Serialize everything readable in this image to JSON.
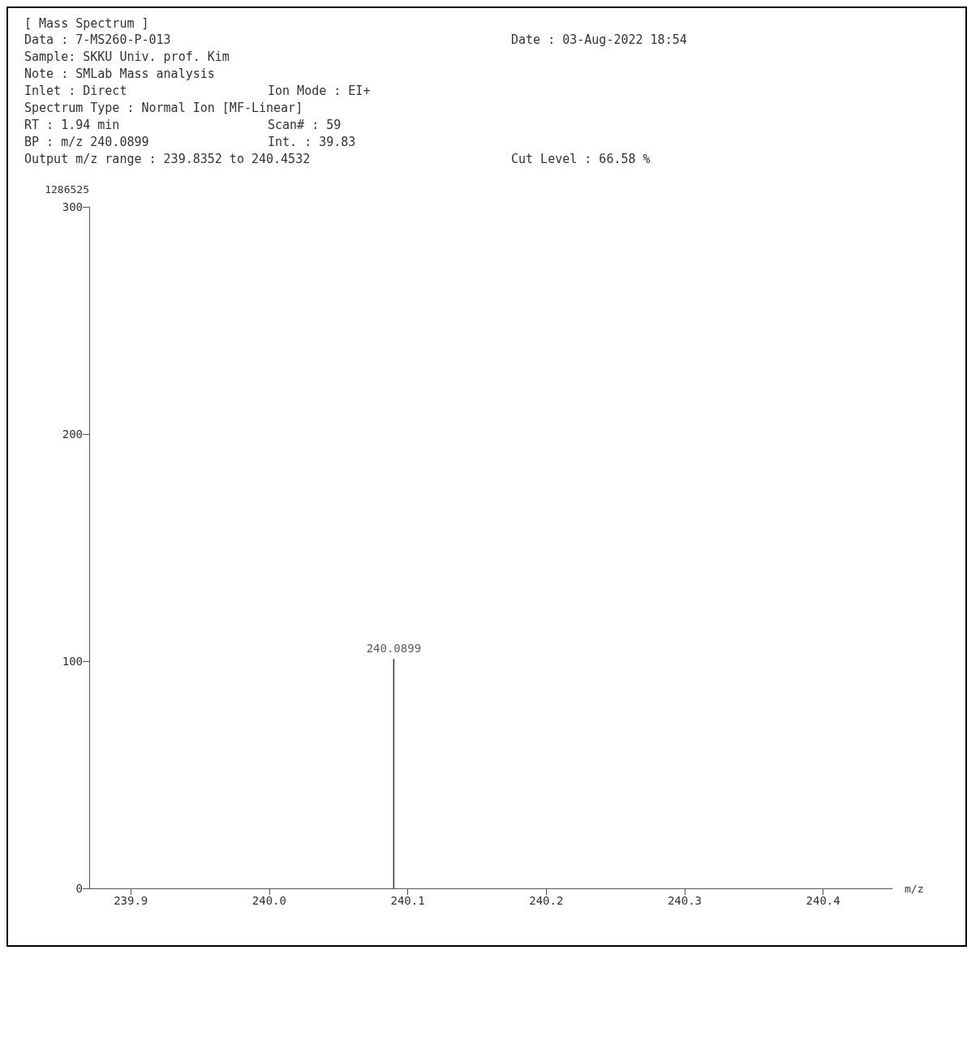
{
  "chart_data": {
    "type": "bar",
    "title": "[ Mass Spectrum ]",
    "annotations": [
      "Data : 7-MS260-P-013",
      "Date : 03-Aug-2022 18:54",
      "Sample: SKKU Univ. prof. Kim",
      "Note : SMLab Mass analysis",
      "Inlet : Direct",
      "Ion Mode : EI+",
      "Spectrum Type : Normal Ion [MF-Linear]",
      "RT : 1.94 min",
      "Scan# : 59",
      "BP : m/z 240.0899",
      "Int. : 39.83",
      "Output m/z range : 239.8352 to 240.4532",
      "Cut Level : 66.58 %",
      {
        "text": "240.0899",
        "x": 240.0899,
        "y": 101
      }
    ],
    "xlabel": "m/z",
    "ylabel": "1286525",
    "x": [
      240.0899
    ],
    "values": [
      101
    ],
    "color": "#333333",
    "xlim": [
      239.87,
      240.45
    ],
    "xticks": [
      {
        "value": 239.9,
        "label": "239.9"
      },
      {
        "value": 240.0,
        "label": "240.0"
      },
      {
        "value": 240.1,
        "label": "240.1"
      },
      {
        "value": 240.2,
        "label": "240.2"
      },
      {
        "value": 240.3,
        "label": "240.3"
      },
      {
        "value": 240.4,
        "label": "240.4"
      }
    ],
    "ylim": [
      0,
      300
    ],
    "yticks": [
      0,
      100,
      200,
      300
    ],
    "grid": false
  }
}
